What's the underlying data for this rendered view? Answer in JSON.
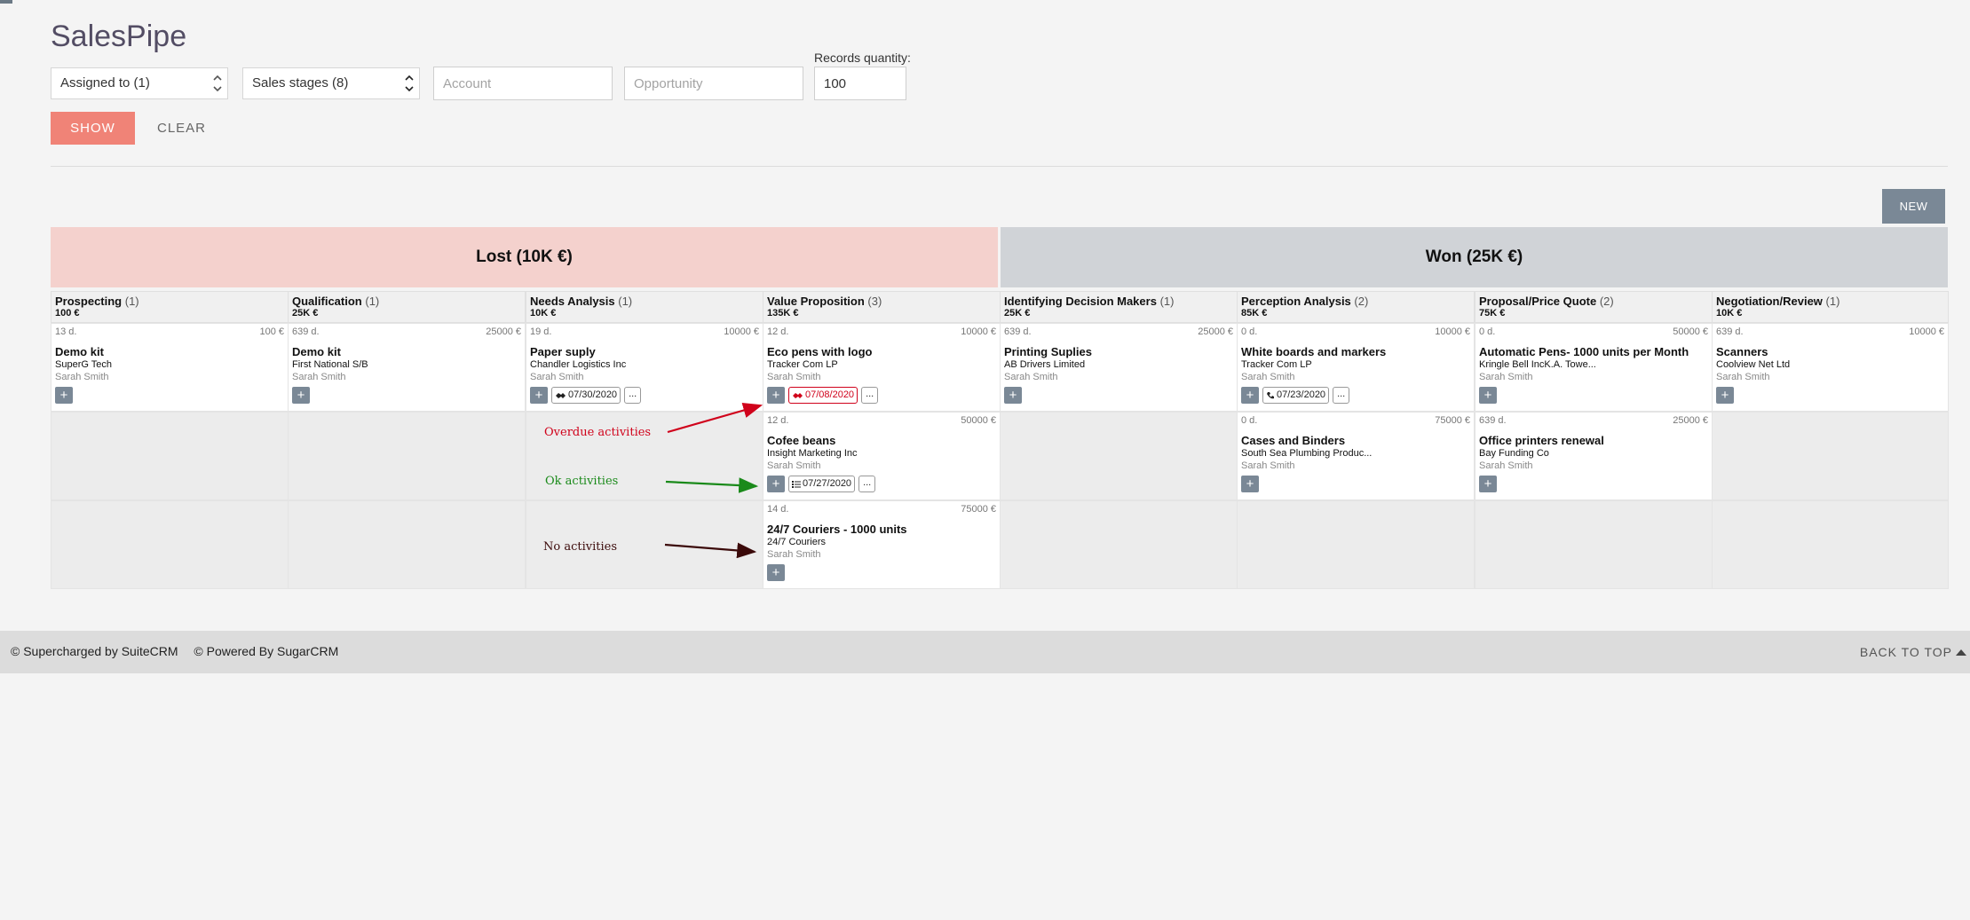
{
  "app": {
    "title": "SalesPipe"
  },
  "filters": {
    "assigned_to": "Assigned to (1)",
    "sales_stages": "Sales stages (8)",
    "account_placeholder": "Account",
    "opportunity_placeholder": "Opportunity",
    "records_label": "Records quantity:",
    "records_value": "100"
  },
  "buttons": {
    "show": "SHOW",
    "clear": "CLEAR",
    "new": "NEW",
    "plus": "+"
  },
  "groups": {
    "lost": "Lost (10K €)",
    "won": "Won (25K €)"
  },
  "stages": [
    {
      "name": "Prospecting",
      "count": "(1)",
      "sum": "100 €"
    },
    {
      "name": "Qualification",
      "count": "(1)",
      "sum": "25K €"
    },
    {
      "name": "Needs Analysis",
      "count": "(1)",
      "sum": "10K €"
    },
    {
      "name": "Value Proposition",
      "count": "(3)",
      "sum": "135K €"
    },
    {
      "name": "Identifying Decision Makers",
      "count": "(1)",
      "sum": "25K €"
    },
    {
      "name": "Perception Analysis",
      "count": "(2)",
      "sum": "85K €"
    },
    {
      "name": "Proposal/Price Quote",
      "count": "(2)",
      "sum": "75K €"
    },
    {
      "name": "Negotiation/Review",
      "count": "(1)",
      "sum": "10K €"
    }
  ],
  "cards": [
    {
      "days": "13 d.",
      "amount": "100 €",
      "opp": "Demo kit",
      "account": "SuperG Tech",
      "user": "Sarah Smith"
    },
    {
      "days": "639 d.",
      "amount": "25000 €",
      "opp": "Demo kit",
      "account": "First National S/B",
      "user": "Sarah Smith"
    },
    {
      "days": "19 d.",
      "amount": "10000 €",
      "opp": "Paper suply",
      "account": "Chandler Logistics Inc",
      "user": "Sarah Smith",
      "activity": "07/30/2020",
      "more": "..."
    },
    {
      "days": "12 d.",
      "amount": "10000 €",
      "opp": "Eco pens with logo",
      "account": "Tracker Com LP",
      "user": "Sarah Smith",
      "activity": "07/08/2020",
      "more": "..."
    },
    {
      "days": "639 d.",
      "amount": "25000 €",
      "opp": "Printing Suplies",
      "account": "AB Drivers Limited",
      "user": "Sarah Smith"
    },
    {
      "days": "0 d.",
      "amount": "10000 €",
      "opp": "White boards and markers",
      "account": "Tracker Com LP",
      "user": "Sarah Smith",
      "activity": "07/23/2020",
      "more": "..."
    },
    {
      "days": "0 d.",
      "amount": "50000 €",
      "opp": "Automatic Pens- 1000 units per Month",
      "account": "Kringle Bell IncK.A. Towe...",
      "user": "Sarah Smith"
    },
    {
      "days": "639 d.",
      "amount": "10000 €",
      "opp": "Scanners",
      "account": "Coolview Net Ltd",
      "user": "Sarah Smith"
    },
    {
      "days": "12 d.",
      "amount": "50000 €",
      "opp": "Cofee beans",
      "account": "Insight Marketing Inc",
      "user": "Sarah Smith",
      "activity": "07/27/2020",
      "more": "..."
    },
    {
      "days": "0 d.",
      "amount": "75000 €",
      "opp": "Cases and Binders",
      "account": "South Sea Plumbing Produc...",
      "user": "Sarah Smith"
    },
    {
      "days": "639 d.",
      "amount": "25000 €",
      "opp": "Office printers renewal",
      "account": "Bay Funding Co",
      "user": "Sarah Smith"
    },
    {
      "days": "14 d.",
      "amount": "75000 €",
      "opp": "24/7 Couriers - 1000 units",
      "account": "24/7 Couriers",
      "user": "Sarah Smith"
    }
  ],
  "annotations": {
    "overdue": "Overdue activities",
    "ok": "Ok activities",
    "none": "No activities"
  },
  "colors": {
    "overdue": "#d0021b",
    "ok": "#1a8a1a",
    "none": "#3b0a0a",
    "show_button": "#f08377",
    "lost_bg": "#f4d1cd",
    "won_bg": "#d0d3d7"
  },
  "footer": {
    "suitecrm": "© Supercharged by SuiteCRM",
    "sugarcrm": "© Powered By SugarCRM",
    "back_to_top": "BACK TO TOP"
  }
}
